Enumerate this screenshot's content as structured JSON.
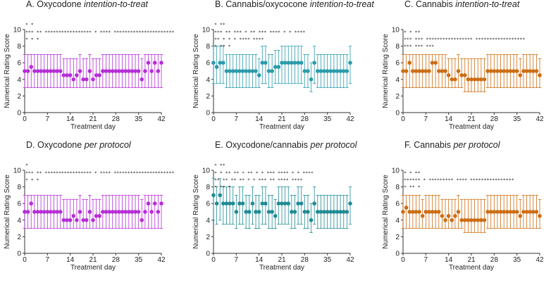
{
  "figure": {
    "x_axis_label": "Treatment day",
    "y_axis_label": "Numerical Rating Score",
    "x_ticks": [
      0,
      7,
      14,
      21,
      28,
      35,
      42
    ],
    "y_ticks": [
      0,
      2,
      4,
      6,
      8,
      10
    ]
  },
  "chart_data": [
    {
      "type": "scatter",
      "panel": "A",
      "title_prefix": "A.  Oxycodone ",
      "title_italic": "intention-to-treat",
      "color": "#b52ed6",
      "xlim": [
        0,
        42
      ],
      "ylim": [
        0,
        10
      ],
      "x": [
        0,
        1,
        2,
        3,
        4,
        5,
        6,
        7,
        8,
        9,
        10,
        11,
        12,
        13,
        14,
        15,
        16,
        17,
        18,
        19,
        20,
        21,
        22,
        23,
        24,
        25,
        26,
        27,
        28,
        29,
        30,
        31,
        32,
        33,
        34,
        35,
        36,
        37,
        38,
        39,
        40,
        41,
        42
      ],
      "median": [
        5,
        5,
        5.5,
        5,
        5,
        5,
        5,
        5,
        5,
        5,
        5,
        5,
        4.5,
        4.5,
        4.5,
        4,
        4.5,
        5,
        4,
        4,
        5,
        4,
        4.5,
        4.5,
        5,
        5,
        5,
        5,
        5,
        5,
        5,
        5,
        5,
        5,
        5,
        5,
        4,
        5,
        6,
        5,
        6,
        5,
        6
      ],
      "upper": [
        7,
        7,
        7,
        7,
        7,
        7,
        7,
        7,
        7,
        7,
        7,
        7,
        6.5,
        6.5,
        6.5,
        6.5,
        6.5,
        7,
        6.5,
        6.5,
        7,
        6.5,
        6.5,
        6.5,
        7,
        7,
        7,
        7,
        7,
        7,
        7,
        7,
        7,
        7,
        7,
        7,
        6.5,
        7,
        7,
        7,
        7,
        7,
        7
      ],
      "lower": [
        3,
        3,
        3,
        3,
        3,
        3,
        3,
        3,
        3,
        3,
        3,
        3,
        3,
        3,
        3,
        3,
        3,
        3,
        3,
        3,
        3,
        3,
        3,
        3,
        3,
        3,
        3,
        3,
        3,
        3,
        3,
        3,
        3,
        3,
        3,
        3,
        3,
        3,
        3,
        3,
        3,
        3,
        3
      ],
      "sig_lines": [
        "***  ** *****************  * ****  **********************",
        "        *                           *     *"
      ],
      "sig_upper": "          *                                 *"
    },
    {
      "type": "scatter",
      "panel": "B",
      "title_prefix": "B.  Cannabis/oxycocone ",
      "title_italic": "intention-to-treat",
      "color": "#2b9bab",
      "xlim": [
        0,
        42
      ],
      "ylim": [
        0,
        10
      ],
      "x": [
        0,
        1,
        2,
        3,
        4,
        5,
        6,
        7,
        8,
        9,
        10,
        11,
        12,
        13,
        14,
        15,
        16,
        17,
        18,
        19,
        20,
        21,
        22,
        23,
        24,
        25,
        26,
        27,
        28,
        29,
        30,
        31,
        32,
        33,
        34,
        35,
        36,
        37,
        38,
        39,
        40,
        41,
        42
      ],
      "median": [
        6,
        5.5,
        6,
        6,
        5,
        5,
        5,
        5,
        5,
        5,
        5,
        5,
        5,
        5,
        4.5,
        6,
        6,
        5,
        5,
        5.5,
        5.5,
        6,
        6,
        6,
        6,
        6,
        6,
        6,
        5,
        5,
        4,
        6,
        5,
        5,
        5,
        5,
        5,
        5,
        5,
        5,
        5,
        5,
        6
      ],
      "upper": [
        8,
        8,
        8,
        8,
        7,
        7,
        7,
        7,
        7,
        7,
        7,
        7,
        7,
        7,
        6.5,
        8,
        8,
        7,
        7,
        7.5,
        7.5,
        8,
        8,
        8,
        8,
        8,
        8,
        8,
        7,
        7,
        6,
        8,
        7,
        7,
        7,
        7,
        7,
        7,
        7,
        7,
        7,
        7,
        8
      ],
      "lower": [
        3.5,
        3.5,
        3.5,
        3.5,
        3,
        3,
        3,
        3,
        3,
        3,
        3,
        3,
        3,
        3,
        3,
        3.5,
        3.5,
        3,
        3,
        3.5,
        3.5,
        3.5,
        3.5,
        3.5,
        3.5,
        3.5,
        3.5,
        3.5,
        3,
        3,
        2.5,
        3.5,
        3,
        3,
        3,
        3,
        3,
        3,
        3,
        3,
        3,
        3,
        3.5
      ],
      "sig_lines": [
        "***  **  ***  *  **   ***  **** *  *    ****",
        "   **       *   *  *     ****   ****",
        "                *  **  *"
      ],
      "sig_upper": "            *     **"
    },
    {
      "type": "scatter",
      "panel": "C",
      "title_prefix": "C.  Cannabis ",
      "title_italic": "intention-to-treat",
      "color": "#cc6d14",
      "xlim": [
        0,
        42
      ],
      "ylim": [
        0,
        10
      ],
      "x": [
        0,
        1,
        2,
        3,
        4,
        5,
        6,
        7,
        8,
        9,
        10,
        11,
        12,
        13,
        14,
        15,
        16,
        17,
        18,
        19,
        20,
        21,
        22,
        23,
        24,
        25,
        26,
        27,
        28,
        29,
        30,
        31,
        32,
        33,
        34,
        35,
        36,
        37,
        38,
        39,
        40,
        41,
        42
      ],
      "median": [
        5,
        5,
        6,
        5,
        5,
        5,
        5,
        5,
        5,
        6,
        6,
        5,
        5,
        5,
        4.5,
        4,
        4,
        5,
        4.5,
        4.5,
        4,
        4,
        4,
        4,
        4,
        4,
        5,
        5,
        5,
        5,
        5,
        5,
        5,
        5,
        5,
        5,
        4.5,
        5,
        5,
        5,
        5,
        5,
        4.5
      ],
      "upper": [
        7,
        7,
        7,
        7,
        7,
        7,
        7,
        7,
        7,
        7,
        7,
        7,
        7,
        7,
        6.5,
        6.5,
        6.5,
        7,
        6.5,
        6.5,
        6.5,
        6.5,
        6.5,
        6.5,
        6.5,
        6.5,
        7,
        7,
        7,
        7,
        7,
        7,
        7,
        7,
        7,
        7,
        6.5,
        7,
        7,
        7,
        7,
        7,
        6.5
      ],
      "lower": [
        3,
        3,
        3,
        3,
        3,
        3,
        3,
        3,
        3,
        3,
        3,
        3,
        3,
        3,
        3,
        3,
        3,
        3,
        3,
        2.5,
        2.5,
        2.5,
        2.5,
        2.5,
        2.5,
        2.5,
        3,
        3,
        3,
        3,
        3,
        3,
        3,
        3,
        3,
        3,
        3,
        3,
        3,
        3,
        3,
        3,
        3
      ],
      "sig_lines": [
        "       *                       *              **",
        " ***  ***  *****************  ****************** ",
        "***  ***  ***"
      ],
      "sig_upper": ""
    },
    {
      "type": "scatter",
      "panel": "D",
      "title_prefix": "D.  Oxycodone ",
      "title_italic": "per protocol",
      "color": "#b52ed6",
      "xlim": [
        0,
        42
      ],
      "ylim": [
        0,
        10
      ],
      "x": [
        0,
        1,
        2,
        3,
        4,
        5,
        6,
        7,
        8,
        9,
        10,
        11,
        12,
        13,
        14,
        15,
        16,
        17,
        18,
        19,
        20,
        21,
        22,
        23,
        24,
        25,
        26,
        27,
        28,
        29,
        30,
        31,
        32,
        33,
        34,
        35,
        36,
        37,
        38,
        39,
        40,
        41,
        42
      ],
      "median": [
        5,
        5,
        6,
        5,
        5,
        5,
        5,
        5,
        5,
        5,
        5,
        5,
        4,
        4,
        4,
        4.5,
        4,
        5,
        4,
        4,
        5,
        4,
        4.5,
        4.5,
        5,
        5,
        5,
        5,
        5,
        5,
        5,
        5,
        5,
        5,
        5,
        5,
        4,
        5,
        6,
        5,
        6,
        5,
        6
      ],
      "upper": [
        7,
        7,
        7,
        7,
        7,
        7,
        7,
        7,
        7,
        7,
        7,
        7,
        6.5,
        6.5,
        6.5,
        6.5,
        6.5,
        7,
        6.5,
        6.5,
        7,
        6.5,
        6.5,
        6.5,
        7,
        7,
        7,
        7,
        7,
        7,
        7,
        7,
        7,
        7,
        7,
        7,
        6.5,
        7,
        7,
        7,
        7,
        7,
        7
      ],
      "lower": [
        3,
        3,
        3,
        3,
        3,
        3,
        3,
        3,
        3,
        3,
        3,
        3,
        3,
        3,
        3,
        3,
        3,
        3,
        3,
        3,
        3,
        3,
        3,
        3,
        3,
        3,
        3,
        3,
        3,
        3,
        3,
        3,
        3,
        3,
        3,
        3,
        3,
        3,
        3,
        3,
        3,
        3,
        3
      ],
      "sig_lines": [
        "***  ** *****************  * ****  **********************",
        "        *                           *     *"
      ],
      "sig_upper": "          *"
    },
    {
      "type": "scatter",
      "panel": "E",
      "title_prefix": "E.  Oxycodone/cannabis ",
      "title_italic": "per protocol",
      "color": "#1f8a94",
      "xlim": [
        0,
        42
      ],
      "ylim": [
        0,
        10
      ],
      "x": [
        0,
        1,
        2,
        3,
        4,
        5,
        6,
        7,
        8,
        9,
        10,
        11,
        12,
        13,
        14,
        15,
        16,
        17,
        18,
        19,
        20,
        21,
        22,
        23,
        24,
        25,
        26,
        27,
        28,
        29,
        30,
        31,
        32,
        33,
        34,
        35,
        36,
        37,
        38,
        39,
        40,
        41,
        42
      ],
      "median": [
        7,
        6,
        7,
        6,
        6,
        6,
        6,
        5,
        6,
        6,
        5,
        5,
        6,
        5,
        5,
        6,
        6,
        5,
        5,
        4.5,
        6,
        6,
        6,
        6,
        5,
        5,
        6,
        6,
        5,
        5,
        4,
        6,
        5,
        5,
        5,
        5,
        5,
        5,
        5,
        5,
        5,
        5,
        6
      ],
      "upper": [
        9,
        8,
        9,
        8,
        8,
        8,
        8,
        7,
        8,
        8,
        7,
        7,
        8,
        7,
        7,
        8,
        8,
        7,
        7,
        6.5,
        8,
        8,
        8,
        8,
        7,
        7,
        8,
        8,
        7,
        7,
        6,
        8,
        7,
        7,
        7,
        7,
        7,
        7,
        7,
        7,
        7,
        7,
        8
      ],
      "lower": [
        4,
        3.5,
        4,
        3.5,
        3.5,
        3.5,
        3.5,
        3,
        3.5,
        3.5,
        3,
        3,
        3.5,
        3,
        3,
        3.5,
        3.5,
        3,
        3,
        3,
        3.5,
        3.5,
        3.5,
        3.5,
        3,
        3,
        3.5,
        3.5,
        3,
        3,
        2.5,
        3.5,
        3,
        3,
        3,
        3,
        3,
        3,
        3,
        3,
        3,
        3,
        3.5
      ],
      "sig_lines": [
        "*  *  **  **  *  **  *  *   ***  **** *  *    ****",
        "  ** ** ** ** * *  *** ** ****   ****",
        "            *  **  *"
      ],
      "sig_upper": "            *     **"
    },
    {
      "type": "scatter",
      "panel": "F",
      "title_prefix": "F.  Cannabis ",
      "title_italic": "per protocol",
      "color": "#cc6d14",
      "xlim": [
        0,
        42
      ],
      "ylim": [
        0,
        10
      ],
      "x": [
        0,
        1,
        2,
        3,
        4,
        5,
        6,
        7,
        8,
        9,
        10,
        11,
        12,
        13,
        14,
        15,
        16,
        17,
        18,
        19,
        20,
        21,
        22,
        23,
        24,
        25,
        26,
        27,
        28,
        29,
        30,
        31,
        32,
        33,
        34,
        35,
        36,
        37,
        38,
        39,
        40,
        41,
        42
      ],
      "median": [
        5,
        5.5,
        5,
        5,
        5,
        5,
        4.5,
        5,
        5,
        5,
        5,
        5,
        4.5,
        4,
        4.5,
        4,
        4.5,
        5,
        4,
        4,
        4,
        4,
        4,
        4,
        4,
        4,
        5,
        5,
        5,
        5,
        5,
        5,
        5,
        5,
        5,
        5,
        4.5,
        5,
        5,
        5,
        5,
        5,
        4.5
      ],
      "upper": [
        7,
        7,
        7,
        7,
        7,
        7,
        6.5,
        7,
        7,
        7,
        7,
        7,
        6.5,
        6.5,
        6.5,
        6.5,
        6.5,
        7,
        6.5,
        6.5,
        6.5,
        6.5,
        6.5,
        6.5,
        6.5,
        6.5,
        7,
        7,
        7,
        7,
        7,
        7,
        7,
        7,
        7,
        7,
        6.5,
        7,
        7,
        7,
        7,
        7,
        6.5
      ],
      "lower": [
        3,
        3,
        3,
        3,
        3,
        3,
        3,
        3,
        3,
        3,
        3,
        3,
        3,
        3,
        3,
        3,
        3,
        3,
        3,
        2.5,
        2.5,
        2.5,
        2.5,
        2.5,
        2.5,
        2.5,
        3,
        3,
        3,
        3,
        3,
        3,
        3,
        3,
        3,
        3,
        3,
        3,
        3,
        3,
        3,
        3,
        3
      ],
      "sig_lines": [
        "       *                       *              **",
        " ******  * *********  ****  **************** ",
        "*      **            *"
      ],
      "sig_upper": ""
    }
  ]
}
